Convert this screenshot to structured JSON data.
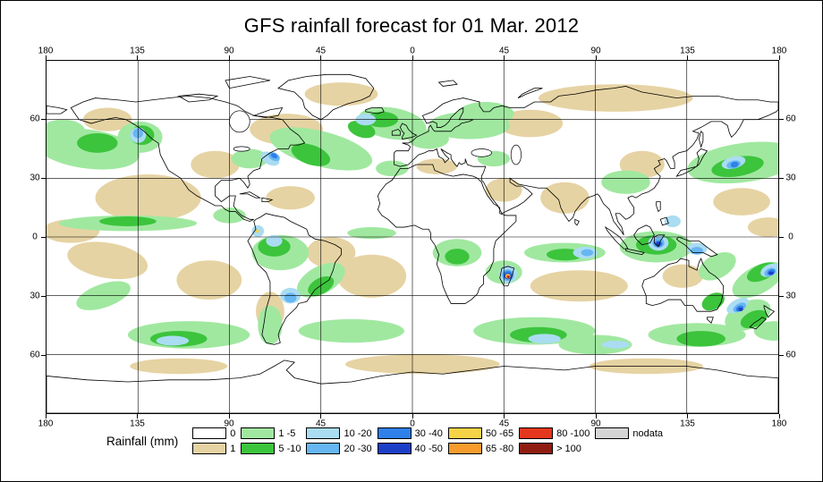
{
  "title": "GFS rainfall forecast for 01 Mar. 2012",
  "axes": {
    "lon_labels": [
      "180",
      "135",
      "90",
      "45",
      "0",
      "45",
      "90",
      "135",
      "180"
    ],
    "lat_labels": [
      "60",
      "30",
      "0",
      "30",
      "60"
    ]
  },
  "legend": {
    "label": "Rainfall (mm)",
    "columns": [
      [
        {
          "label": "0",
          "color": "#ffffff"
        },
        {
          "label": "1",
          "color": "#e6d3a3"
        }
      ],
      [
        {
          "label": "1 -5",
          "color": "#a0e8a0"
        },
        {
          "label": "5 -10",
          "color": "#3cc43c"
        }
      ],
      [
        {
          "label": "10 -20",
          "color": "#aadcf2"
        },
        {
          "label": "20 -30",
          "color": "#66b6f2"
        }
      ],
      [
        {
          "label": "30 -40",
          "color": "#2f80e8"
        },
        {
          "label": "40 -50",
          "color": "#1c3fc8"
        }
      ],
      [
        {
          "label": "50 -65",
          "color": "#f5d348"
        },
        {
          "label": "65 -80",
          "color": "#f79b2d"
        }
      ],
      [
        {
          "label": "80 -100",
          "color": "#e5371d"
        },
        {
          "label": "> 100",
          "color": "#8f1d12"
        }
      ],
      [
        {
          "label": "nodata",
          "color": "#d5d5d5"
        }
      ]
    ]
  },
  "chart_data": {
    "type": "map",
    "projection": "equirectangular",
    "lon_range": [
      -180,
      180
    ],
    "lat_range": [
      -90,
      90
    ],
    "grid": {
      "lon_step": 45,
      "lat_step": 30,
      "grid_on": true
    },
    "units": "mm",
    "title": "GFS rainfall forecast for 01 Mar. 2012",
    "legend_position": "bottom",
    "category_draw_order": [
      "1",
      "1 -5",
      "5 -10",
      "10 -20",
      "20 -30",
      "30 -40",
      "40 -50",
      "50 -65",
      "65 -80",
      "80 -100",
      "> 100"
    ],
    "region_fields": [
      "lon",
      "lat",
      "rx_deg",
      "ry_deg",
      "rotation_deg"
    ],
    "rainfall_regions": {
      "1": [
        [
          -130,
          20,
          26,
          12,
          0
        ],
        [
          -150,
          -12,
          20,
          9,
          10
        ],
        [
          -100,
          -22,
          16,
          10,
          0
        ],
        [
          -20,
          -20,
          17,
          11,
          0
        ],
        [
          82,
          -25,
          24,
          8,
          0
        ],
        [
          133,
          -20,
          10,
          6,
          0
        ],
        [
          -62,
          55,
          18,
          8,
          0
        ],
        [
          100,
          71,
          38,
          7,
          0
        ],
        [
          -35,
          73,
          18,
          6,
          0
        ],
        [
          75,
          20,
          12,
          8,
          0
        ],
        [
          45,
          24,
          9,
          6,
          0
        ],
        [
          -70,
          -38,
          7,
          10,
          0
        ],
        [
          162,
          18,
          14,
          7,
          0
        ],
        [
          -168,
          3,
          14,
          6,
          0
        ],
        [
          5,
          -65,
          38,
          5,
          0
        ],
        [
          115,
          -66,
          28,
          4,
          0
        ],
        [
          -115,
          -66,
          24,
          4,
          0
        ],
        [
          -40,
          -8,
          12,
          8,
          0
        ],
        [
          -97,
          37,
          12,
          7,
          0
        ],
        [
          58,
          58,
          16,
          7,
          0
        ],
        [
          113,
          37,
          11,
          7,
          0
        ],
        [
          12,
          36,
          10,
          4,
          0
        ],
        [
          -150,
          60,
          12,
          6,
          0
        ],
        [
          175,
          5,
          10,
          5,
          0
        ],
        [
          -60,
          20,
          12,
          6,
          0
        ]
      ],
      "1 -5": [
        [
          163,
          38,
          28,
          10,
          -8
        ],
        [
          -160,
          45,
          26,
          10,
          8
        ],
        [
          -134,
          51,
          11,
          8,
          0
        ],
        [
          -45,
          45,
          26,
          9,
          15
        ],
        [
          -10,
          58,
          17,
          8,
          10
        ],
        [
          28,
          57,
          20,
          7,
          0
        ],
        [
          -140,
          7,
          34,
          4,
          0
        ],
        [
          -65,
          -8,
          14,
          9,
          0
        ],
        [
          -45,
          -22,
          13,
          7,
          -30
        ],
        [
          22,
          -8,
          12,
          7,
          0
        ],
        [
          75,
          -8,
          20,
          5,
          0
        ],
        [
          120,
          -5,
          18,
          8,
          0
        ],
        [
          150,
          -15,
          10,
          6,
          -30
        ],
        [
          170,
          -22,
          14,
          7,
          -30
        ],
        [
          -152,
          -30,
          14,
          6,
          -20
        ],
        [
          -110,
          -50,
          30,
          7,
          0
        ],
        [
          -30,
          -48,
          26,
          6,
          0
        ],
        [
          60,
          -48,
          30,
          7,
          0
        ],
        [
          140,
          -50,
          24,
          6,
          0
        ],
        [
          -70,
          -45,
          6,
          10,
          0
        ],
        [
          165,
          -40,
          12,
          7,
          -25
        ],
        [
          45,
          -18,
          9,
          6,
          0
        ],
        [
          -20,
          2,
          12,
          3,
          0
        ],
        [
          105,
          28,
          12,
          6,
          0
        ],
        [
          -80,
          40,
          9,
          5,
          0
        ],
        [
          36,
          63,
          14,
          6,
          0
        ],
        [
          -172,
          54,
          11,
          6,
          0
        ],
        [
          90,
          -55,
          18,
          5,
          0
        ],
        [
          -90,
          11,
          8,
          4,
          0
        ],
        [
          8,
          50,
          10,
          5,
          0
        ],
        [
          178,
          -48,
          10,
          5,
          0
        ],
        [
          -10,
          35,
          8,
          4,
          0
        ],
        [
          40,
          40,
          8,
          4,
          0
        ]
      ],
      "5 -10": [
        [
          160,
          36,
          13,
          5,
          -10
        ],
        [
          -155,
          48,
          10,
          5,
          0
        ],
        [
          -50,
          42,
          10,
          5,
          20
        ],
        [
          -15,
          60,
          8,
          4,
          0
        ],
        [
          -68,
          -5,
          8,
          5,
          0
        ],
        [
          120,
          -4,
          10,
          5,
          0
        ],
        [
          172,
          -18,
          8,
          4,
          -25
        ],
        [
          -115,
          -52,
          14,
          4,
          0
        ],
        [
          62,
          -50,
          14,
          4,
          0
        ],
        [
          142,
          -52,
          12,
          4,
          0
        ],
        [
          -140,
          8,
          14,
          2.5,
          0
        ],
        [
          75,
          -9,
          9,
          3,
          0
        ],
        [
          22,
          -10,
          6,
          4,
          0
        ],
        [
          -45,
          -25,
          7,
          4,
          -30
        ],
        [
          168,
          -42,
          7,
          4,
          -25
        ],
        [
          -133,
          52,
          6,
          5,
          0
        ],
        [
          -25,
          55,
          7,
          4,
          20
        ],
        [
          148,
          -33,
          6,
          4,
          -30
        ]
      ],
      "10 -20": [
        [
          -70,
          40,
          5,
          3,
          30
        ],
        [
          -135,
          52,
          4,
          4,
          0
        ],
        [
          158,
          38,
          6,
          3,
          -15
        ],
        [
          121,
          -3,
          5,
          4,
          0
        ],
        [
          140,
          -6,
          5,
          3,
          0
        ],
        [
          176,
          -17,
          5,
          3,
          -25
        ],
        [
          -60,
          -30,
          5,
          4,
          0
        ],
        [
          47,
          -19,
          4.5,
          4.5,
          0
        ],
        [
          85,
          -8,
          6,
          3,
          0
        ],
        [
          -118,
          -53,
          8,
          2.5,
          0
        ],
        [
          160,
          -35,
          6,
          3,
          -30
        ],
        [
          -23,
          60,
          5,
          3,
          0
        ],
        [
          -76,
          3,
          3,
          3,
          0
        ],
        [
          128,
          8,
          4,
          3,
          0
        ],
        [
          65,
          -52,
          8,
          2.5,
          0
        ],
        [
          -68,
          -2,
          4,
          3,
          0
        ],
        [
          100,
          -55,
          7,
          2,
          0
        ]
      ],
      "20 -30": [
        [
          -68,
          41,
          3,
          2,
          30
        ],
        [
          158,
          37,
          3.5,
          2,
          -15
        ],
        [
          121,
          -3,
          3,
          2.5,
          0
        ],
        [
          176,
          -18,
          3,
          2,
          -25
        ],
        [
          47,
          -19.5,
          3,
          3,
          0
        ],
        [
          140,
          -7,
          3,
          2,
          0
        ],
        [
          -135,
          53,
          2.5,
          2.5,
          0
        ],
        [
          161,
          -36,
          3.5,
          2,
          -30
        ],
        [
          -60,
          -31,
          3,
          2.5,
          0
        ],
        [
          86,
          -8,
          3,
          1.8,
          0
        ]
      ],
      "30 -40": [
        [
          47,
          -19.5,
          2.2,
          2.2,
          0
        ],
        [
          158.5,
          37,
          2,
          1.4,
          -15
        ],
        [
          121,
          -3.5,
          2,
          1.6,
          0
        ],
        [
          176.5,
          -18,
          2,
          1.4,
          -25
        ],
        [
          -68,
          41.5,
          1.8,
          1.2,
          30
        ],
        [
          161,
          -36.5,
          2,
          1.3,
          -30
        ]
      ],
      "40 -50": [
        [
          47,
          -20,
          1.6,
          1.6,
          0
        ],
        [
          121,
          -3.5,
          1.2,
          1,
          0
        ],
        [
          176.5,
          -18.5,
          1.2,
          0.9,
          0
        ],
        [
          161.5,
          -37,
          1.2,
          0.9,
          0
        ]
      ],
      "50 -65": [
        [
          47,
          -20,
          1.2,
          1.2,
          0
        ],
        [
          -76.5,
          3,
          1,
          0.8,
          0
        ]
      ],
      "65 -80": [
        [
          47,
          -20.3,
          0.9,
          0.9,
          0
        ]
      ],
      "80 -100": [
        [
          47.2,
          -20.3,
          0.7,
          0.7,
          0
        ]
      ],
      "> 100": [
        [
          47.2,
          -20.5,
          0.45,
          0.45,
          0
        ]
      ]
    }
  }
}
